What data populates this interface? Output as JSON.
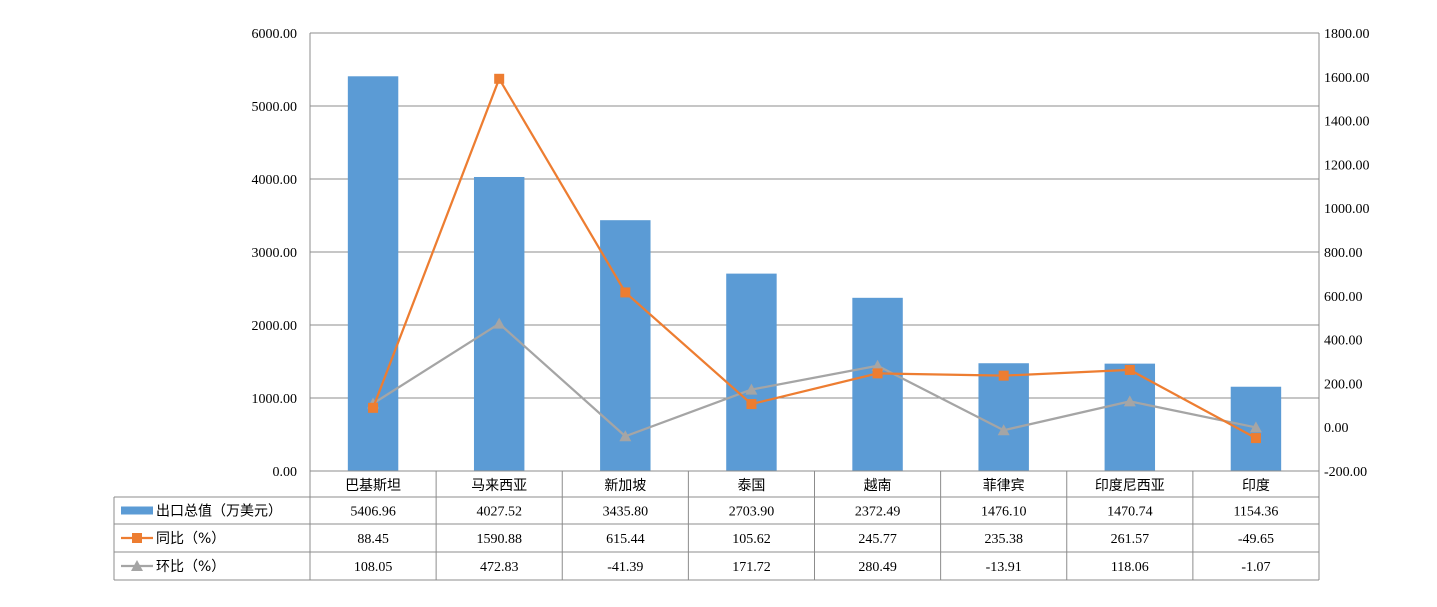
{
  "chart_data": {
    "type": "bar",
    "categories": [
      "巴基斯坦",
      "马来西亚",
      "新加坡",
      "泰国",
      "越南",
      "菲律宾",
      "印度尼西亚",
      "印度"
    ],
    "series": [
      {
        "name": "出口总值（万美元）",
        "kind": "bar",
        "axis": "left",
        "color": "#5B9BD5",
        "marker": "bar",
        "values": [
          "5406.96",
          "4027.52",
          "3435.80",
          "2703.90",
          "2372.49",
          "1476.10",
          "1470.74",
          "1154.36"
        ]
      },
      {
        "name": "同比（%）",
        "kind": "line",
        "axis": "right",
        "color": "#ED7D31",
        "marker": "square",
        "values": [
          "88.45",
          "1590.88",
          "615.44",
          "105.62",
          "245.77",
          "235.38",
          "261.57",
          "-49.65"
        ]
      },
      {
        "name": "环比（%）",
        "kind": "line",
        "axis": "right",
        "color": "#A5A5A5",
        "marker": "triangle",
        "values": [
          "108.05",
          "472.83",
          "-41.39",
          "171.72",
          "280.49",
          "-13.91",
          "118.06",
          "-1.07"
        ]
      }
    ],
    "y_left": {
      "ylim": [
        0,
        6000
      ],
      "ticks": [
        "0.00",
        "1000.00",
        "2000.00",
        "3000.00",
        "4000.00",
        "5000.00",
        "6000.00"
      ]
    },
    "y_right": {
      "ylim": [
        -200,
        1800
      ],
      "ticks": [
        "-200.00",
        "0.00",
        "200.00",
        "400.00",
        "600.00",
        "800.00",
        "1000.00",
        "1200.00",
        "1400.00",
        "1600.00",
        "1800.00"
      ]
    },
    "grid": true,
    "legend": "data-table"
  }
}
